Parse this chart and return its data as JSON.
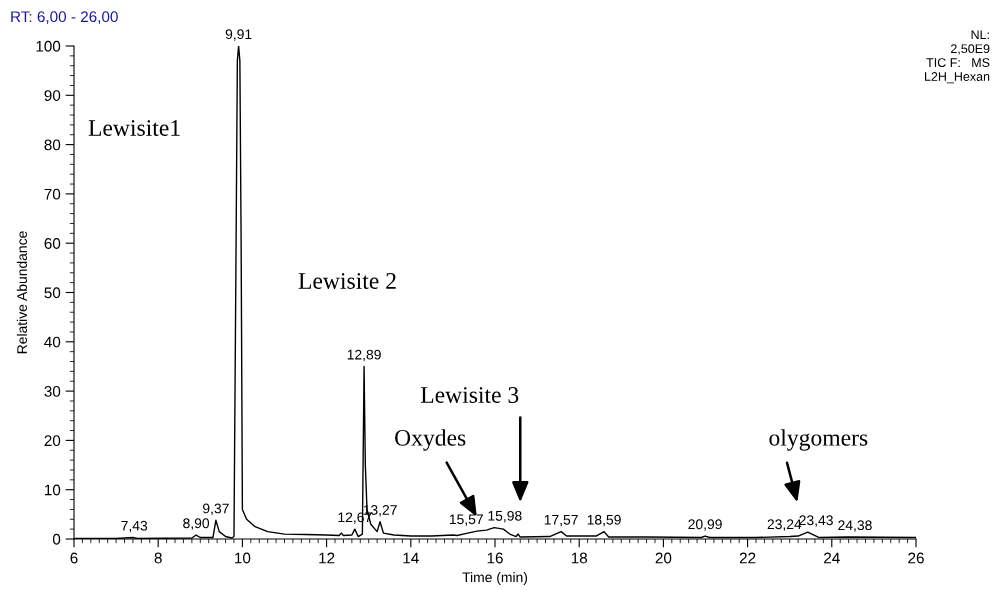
{
  "chart_data": {
    "type": "line",
    "xlabel": "Time (min)",
    "ylabel": "Relative Abundance",
    "xlim": [
      6,
      26
    ],
    "xticks": [
      6,
      8,
      10,
      12,
      14,
      16,
      18,
      20,
      22,
      24,
      26
    ],
    "ylim": [
      0,
      100
    ],
    "yticks": [
      0,
      10,
      20,
      30,
      40,
      50,
      60,
      70,
      80,
      90,
      100
    ],
    "grid": false,
    "legend": false,
    "marker": "none",
    "line_style": "solid",
    "series": [
      {
        "color": "#000000",
        "x": [
          6.0,
          7.0,
          7.4,
          7.5,
          8.8,
          8.9,
          9.0,
          9.3,
          9.37,
          9.45,
          9.6,
          9.75,
          9.8,
          9.85,
          9.88,
          9.91,
          9.94,
          9.97,
          10.0,
          10.1,
          10.3,
          10.6,
          11.0,
          11.5,
          12.0,
          12.3,
          12.35,
          12.4,
          12.6,
          12.67,
          12.75,
          12.85,
          12.89,
          12.92,
          12.96,
          13.05,
          13.2,
          13.27,
          13.35,
          13.6,
          14.0,
          14.5,
          15.0,
          15.1,
          15.3,
          15.57,
          15.8,
          15.98,
          16.2,
          16.35,
          16.5,
          16.55,
          16.6,
          17.3,
          17.57,
          17.7,
          18.4,
          18.59,
          18.7,
          19.6,
          20.9,
          20.99,
          21.1,
          22.2,
          23.0,
          23.2,
          23.43,
          23.7,
          24.38,
          26.0
        ],
        "values": [
          0.1,
          0.1,
          0.3,
          0.1,
          0.2,
          0.8,
          0.3,
          0.3,
          3.8,
          1.5,
          0.5,
          0.2,
          0.5,
          60,
          97,
          100,
          97,
          60,
          6,
          4,
          2.5,
          1.5,
          1.0,
          0.9,
          0.8,
          0.7,
          1.2,
          0.7,
          0.8,
          2.0,
          0.5,
          1.0,
          35,
          15,
          6,
          3,
          1.5,
          3.5,
          1.2,
          0.8,
          0.6,
          0.6,
          0.8,
          0.7,
          1.1,
          1.6,
          1.8,
          2.3,
          2.0,
          1.0,
          0.5,
          1.0,
          0.4,
          0.5,
          1.5,
          0.6,
          0.6,
          1.5,
          0.4,
          0.4,
          0.3,
          0.6,
          0.3,
          0.3,
          0.5,
          0.6,
          1.4,
          0.3,
          0.4,
          0.3
        ]
      }
    ],
    "annotations": [
      "RT: 6,00 - 26,00",
      "NL:\n2,50E9\nTIC F:   MS\nL2H_Hexan",
      "Lewisite1",
      "Lewisite 2",
      "Oxydes",
      "Lewisite 3",
      "olygomers",
      {
        "text": "7,43",
        "x": 7.43,
        "y": 0.3
      },
      {
        "text": "8,90",
        "x": 8.9,
        "y": 0.8
      },
      {
        "text": "9,37",
        "x": 9.37,
        "y": 3.8
      },
      {
        "text": "9,91",
        "x": 9.91,
        "y": 100
      },
      {
        "text": "12,67",
        "x": 12.67,
        "y": 2.0
      },
      {
        "text": "12,89",
        "x": 12.89,
        "y": 35
      },
      {
        "text": "13,27",
        "x": 13.27,
        "y": 3.5
      },
      {
        "text": "15,57",
        "x": 15.57,
        "y": 1.6
      },
      {
        "text": "15,98",
        "x": 15.98,
        "y": 2.3
      },
      {
        "text": "17,57",
        "x": 17.57,
        "y": 1.5
      },
      {
        "text": "18,59",
        "x": 18.59,
        "y": 1.5
      },
      {
        "text": "20,99",
        "x": 20.99,
        "y": 0.6
      },
      {
        "text": "23,24",
        "x": 23.24,
        "y": 0.6
      },
      {
        "text": "23,43",
        "x": 23.43,
        "y": 1.4
      },
      {
        "text": "24,38",
        "x": 24.38,
        "y": 0.4
      }
    ]
  }
}
